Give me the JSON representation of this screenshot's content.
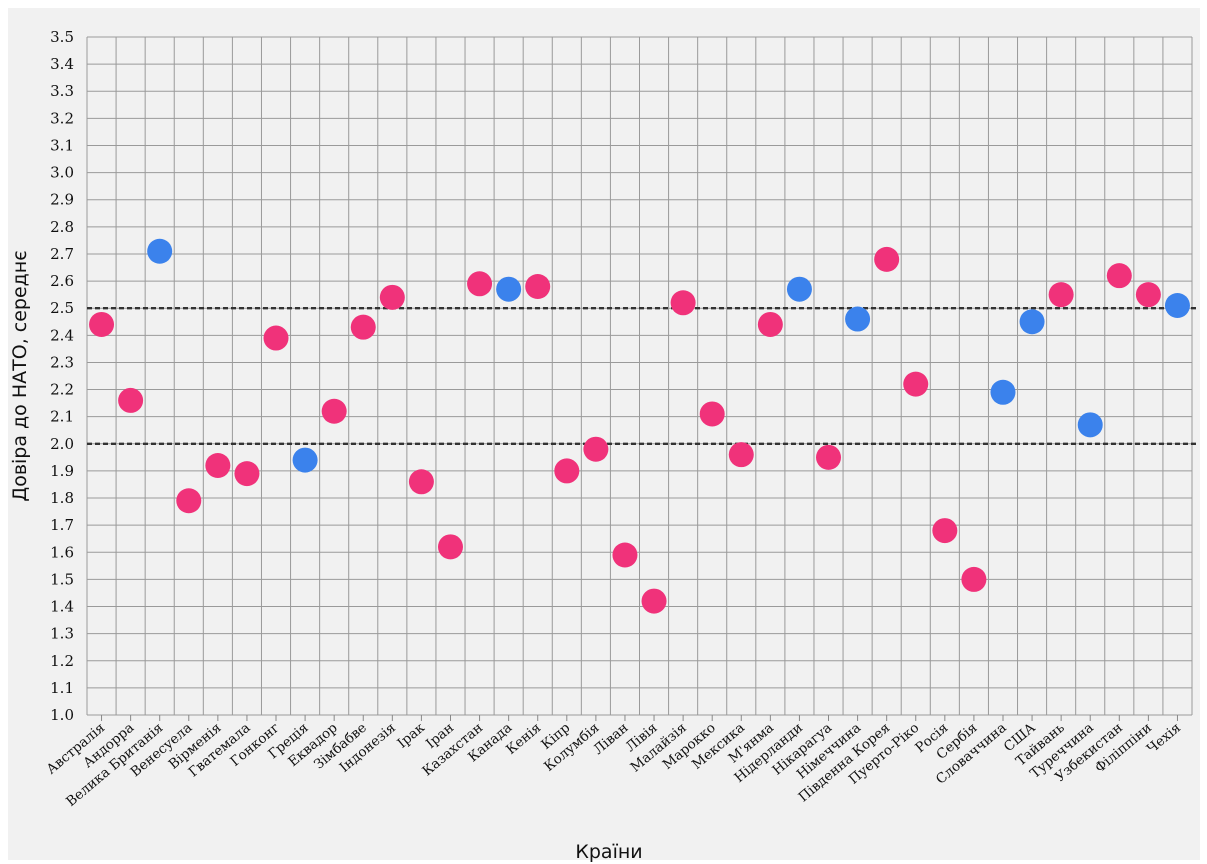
{
  "chart_data": {
    "type": "scatter",
    "title": "",
    "xlabel": "Країни",
    "ylabel": "Довіра до НАТО, середнє",
    "ylim": [
      1.0,
      3.5
    ],
    "ytick_step": 0.1,
    "grid": true,
    "reference_lines": [
      2.0,
      2.5
    ],
    "colors": {
      "pink": "#f0327a",
      "blue": "#3b82ec"
    },
    "points": [
      {
        "country": "Австралія",
        "value": 2.44,
        "color": "pink"
      },
      {
        "country": "Андорра",
        "value": 2.16,
        "color": "pink"
      },
      {
        "country": "Велика Британія",
        "value": 2.71,
        "color": "blue"
      },
      {
        "country": "Венесуела",
        "value": 1.79,
        "color": "pink"
      },
      {
        "country": "Вірменія",
        "value": 1.92,
        "color": "pink"
      },
      {
        "country": "Гватемала",
        "value": 1.89,
        "color": "pink"
      },
      {
        "country": "Гонконг",
        "value": 2.39,
        "color": "pink"
      },
      {
        "country": "Греція",
        "value": 1.94,
        "color": "blue"
      },
      {
        "country": "Еквадор",
        "value": 2.12,
        "color": "pink"
      },
      {
        "country": "Зімбабве",
        "value": 2.43,
        "color": "pink"
      },
      {
        "country": "Індонезія",
        "value": 2.54,
        "color": "pink"
      },
      {
        "country": "Ірак",
        "value": 1.86,
        "color": "pink"
      },
      {
        "country": "Іран",
        "value": 1.62,
        "color": "pink"
      },
      {
        "country": "Казахстан",
        "value": 2.59,
        "color": "pink"
      },
      {
        "country": "Канада",
        "value": 2.57,
        "color": "blue"
      },
      {
        "country": "Кенія",
        "value": 2.58,
        "color": "pink"
      },
      {
        "country": "Кіпр",
        "value": 1.9,
        "color": "pink"
      },
      {
        "country": "Колумбія",
        "value": 1.98,
        "color": "pink"
      },
      {
        "country": "Ліван",
        "value": 1.59,
        "color": "pink"
      },
      {
        "country": "Лівія",
        "value": 1.42,
        "color": "pink"
      },
      {
        "country": "Малайзія",
        "value": 2.52,
        "color": "pink"
      },
      {
        "country": "Марокко",
        "value": 2.11,
        "color": "pink"
      },
      {
        "country": "Мексика",
        "value": 1.96,
        "color": "pink"
      },
      {
        "country": "М'янма",
        "value": 2.44,
        "color": "pink"
      },
      {
        "country": "Нідерланди",
        "value": 2.57,
        "color": "blue"
      },
      {
        "country": "Нікарагуа",
        "value": 1.95,
        "color": "pink"
      },
      {
        "country": "Німеччина",
        "value": 2.46,
        "color": "blue"
      },
      {
        "country": "Південна Корея",
        "value": 2.68,
        "color": "pink"
      },
      {
        "country": "Пуерто-Ріко",
        "value": 2.22,
        "color": "pink"
      },
      {
        "country": "Росія",
        "value": 1.68,
        "color": "pink"
      },
      {
        "country": "Сербія",
        "value": 1.5,
        "color": "pink"
      },
      {
        "country": "Словаччина",
        "value": 2.19,
        "color": "blue"
      },
      {
        "country": "США",
        "value": 2.45,
        "color": "blue"
      },
      {
        "country": "Тайвань",
        "value": 2.55,
        "color": "pink"
      },
      {
        "country": "Туреччина",
        "value": 2.07,
        "color": "blue"
      },
      {
        "country": "Узбекистан",
        "value": 2.62,
        "color": "pink"
      },
      {
        "country": "Філіппіни",
        "value": 2.55,
        "color": "pink"
      },
      {
        "country": "Чехія",
        "value": 2.51,
        "color": "blue"
      }
    ]
  }
}
